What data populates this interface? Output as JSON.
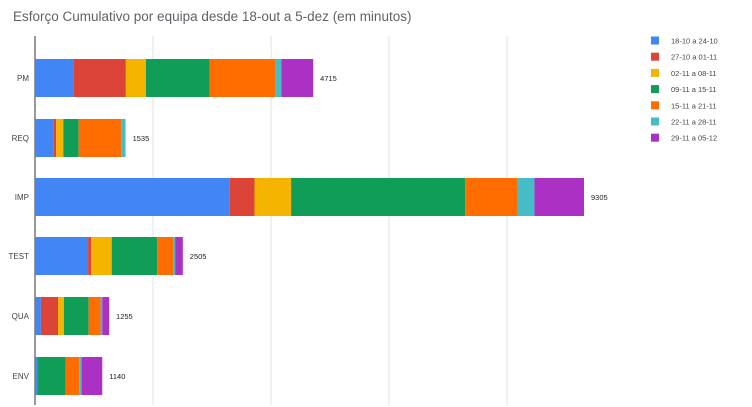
{
  "chart_data": {
    "type": "bar",
    "orientation": "horizontal",
    "stacked": true,
    "title": "Esforço Cumulativo por equipa desde 18-out a 5-dez (em minutos)",
    "xlabel": "",
    "ylabel": "",
    "xlim": [
      0,
      10000
    ],
    "grid": true,
    "legend_position": "right",
    "categories": [
      "PM",
      "REQ",
      "IMP",
      "TEST",
      "QUA",
      "ENV"
    ],
    "totals": [
      "4715",
      "1535",
      "9305",
      "2505",
      "1255",
      "1140"
    ],
    "series": [
      {
        "name": "18-10 a 24-10",
        "color": "#4285f4",
        "values": [
          660,
          320,
          3300,
          900,
          100,
          40
        ]
      },
      {
        "name": "27-10 a 01-11",
        "color": "#db4437",
        "values": [
          880,
          40,
          420,
          50,
          290,
          0
        ]
      },
      {
        "name": "02-11 a 08-11",
        "color": "#f4b400",
        "values": [
          340,
          120,
          620,
          350,
          100,
          0
        ]
      },
      {
        "name": "09-11 a 15-11",
        "color": "#0f9d58",
        "values": [
          1080,
          260,
          2950,
          770,
          420,
          480
        ]
      },
      {
        "name": "15-11 a 21-11",
        "color": "#ff6d00",
        "values": [
          1120,
          720,
          890,
          270,
          200,
          230
        ]
      },
      {
        "name": "22-11 a 28-11",
        "color": "#46bdc6",
        "values": [
          95,
          75,
          285,
          35,
          30,
          40
        ]
      },
      {
        "name": "29-11 a 05-12",
        "color": "#ab30c4",
        "values": [
          540,
          0,
          840,
          130,
          115,
          350
        ]
      }
    ]
  }
}
